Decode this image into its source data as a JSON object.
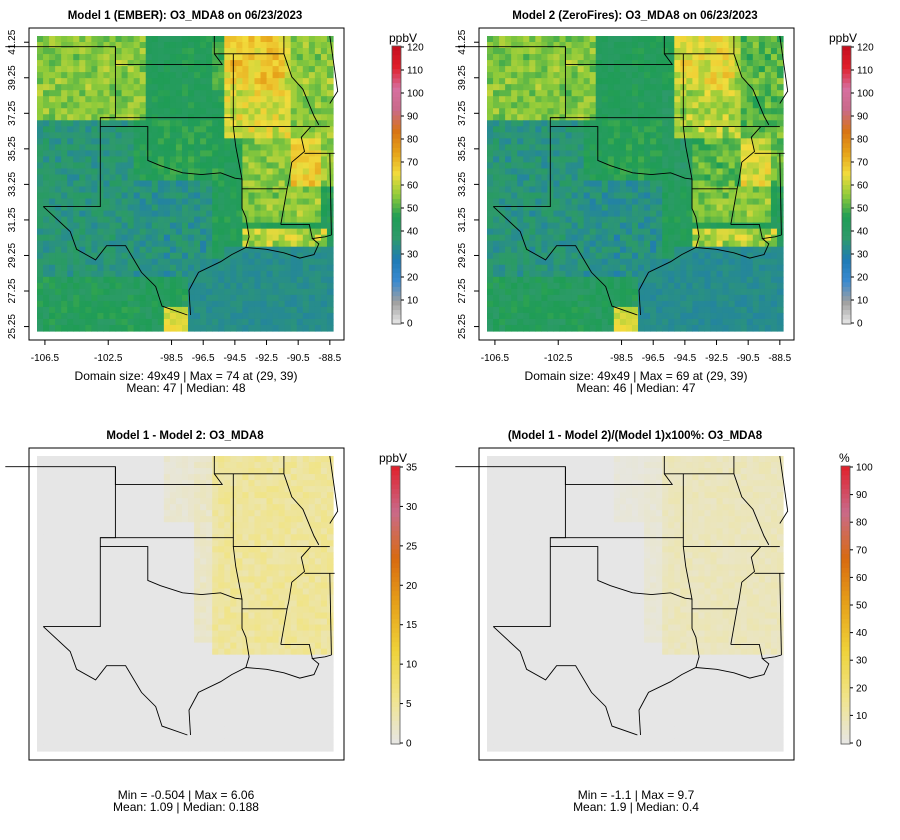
{
  "chart_data": [
    {
      "type": "heatmap",
      "title": "Model 1 (EMBER): O3_MDA8 on 06/23/2023",
      "xticks": [
        "-106.5",
        "-102.5",
        "-98.5",
        "-96.5",
        "-94.5",
        "-92.5",
        "-90.5",
        "-88.5"
      ],
      "yticks": [
        "41.25",
        "39.25",
        "37.25",
        "35.25",
        "33.25",
        "31.25",
        "29.25",
        "27.25",
        "25.25"
      ],
      "xlim": [
        -107.0,
        -88.3
      ],
      "ylim": [
        25.25,
        41.25
      ],
      "colorbar": {
        "unit": "ppbV",
        "min": 0,
        "max": 120,
        "ticks": [
          "0",
          "10",
          "20",
          "30",
          "40",
          "50",
          "60",
          "70",
          "80",
          "90",
          "100",
          "110",
          "120"
        ]
      },
      "stats_line1": "Domain size: 49x49 | Max = 74 at (29, 39)",
      "stats_line2": "Mean: 47 |  Median: 48",
      "grid_size": [
        49,
        49
      ],
      "max": 74,
      "max_at": [
        29,
        39
      ],
      "mean": 47,
      "median": 48
    },
    {
      "type": "heatmap",
      "title": "Model 2 (ZeroFires): O3_MDA8 on 06/23/2023",
      "xticks": [
        "-106.5",
        "-102.5",
        "-98.5",
        "-96.5",
        "-94.5",
        "-92.5",
        "-90.5",
        "-88.5"
      ],
      "yticks": [
        "41.25",
        "39.25",
        "37.25",
        "35.25",
        "33.25",
        "31.25",
        "29.25",
        "27.25",
        "25.25"
      ],
      "xlim": [
        -107.0,
        -88.3
      ],
      "ylim": [
        25.25,
        41.25
      ],
      "colorbar": {
        "unit": "ppbV",
        "min": 0,
        "max": 120,
        "ticks": [
          "0",
          "10",
          "20",
          "30",
          "40",
          "50",
          "60",
          "70",
          "80",
          "90",
          "100",
          "110",
          "120"
        ]
      },
      "stats_line1": "Domain size: 49x49 | Max = 69 at (29, 39)",
      "stats_line2": "Mean: 46 |  Median: 47",
      "grid_size": [
        49,
        49
      ],
      "max": 69,
      "max_at": [
        29,
        39
      ],
      "mean": 46,
      "median": 47
    },
    {
      "type": "heatmap",
      "title": "Model 1 - Model 2: O3_MDA8",
      "xticks": [],
      "yticks": [],
      "xlim": [
        -107.0,
        -88.3
      ],
      "ylim": [
        25.25,
        41.25
      ],
      "colorbar": {
        "unit": "ppbV",
        "min": 0,
        "max": 35,
        "ticks": [
          "0",
          "5",
          "10",
          "15",
          "20",
          "25",
          "30",
          "35"
        ]
      },
      "stats_line1": "Min = -0.504 | Max = 6.06",
      "stats_line2": "Mean: 1.09 |  Median: 0.188",
      "min": -0.504,
      "max": 6.06,
      "mean": 1.09,
      "median": 0.188
    },
    {
      "type": "heatmap",
      "title": "(Model 1 - Model 2)/(Model 1)x100%: O3_MDA8",
      "xticks": [],
      "yticks": [],
      "xlim": [
        -107.0,
        -88.3
      ],
      "ylim": [
        25.25,
        41.25
      ],
      "colorbar": {
        "unit": "%",
        "min": 0,
        "max": 100,
        "ticks": [
          "0",
          "10",
          "20",
          "30",
          "40",
          "50",
          "60",
          "70",
          "80",
          "90",
          "100"
        ]
      },
      "stats_line1": "Min = -1.1 | Max = 9.7",
      "stats_line2": "Mean: 1.9 |  Median: 0.4",
      "min": -1.1,
      "max": 9.7,
      "mean": 1.9,
      "median": 0.4
    }
  ],
  "palette_abs": [
    "#e8e8e8",
    "#a0a0a0",
    "#3a8ad0",
    "#1f7bb5",
    "#2e9a6b",
    "#1f9d55",
    "#8fcb3a",
    "#f2dc3c",
    "#e6a21a",
    "#d87514",
    "#c96a8a",
    "#d76fa0",
    "#e01e2a",
    "#c40e1e"
  ],
  "palette_diff": [
    "#e6e6e6",
    "#f0e48a",
    "#efd23a",
    "#e6a21a",
    "#d86a10",
    "#c96a8a",
    "#e0202a"
  ]
}
